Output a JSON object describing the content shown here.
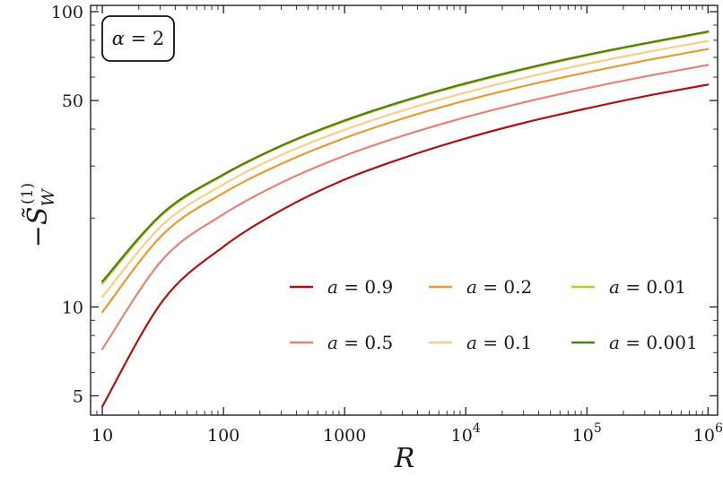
{
  "chart_data": {
    "type": "line",
    "title": "",
    "xlabel": "R",
    "ylabel": "−S̃_W^(1)",
    "ylabel_parts": {
      "sign": "−",
      "symbol": "S̃",
      "subscript": "W",
      "superscript": "(1)"
    },
    "annotation": {
      "variable": "α",
      "text": " = 2"
    },
    "x_scale": "log",
    "y_scale": "log",
    "xlim": [
      8,
      1200000
    ],
    "ylim": [
      4.3,
      105
    ],
    "x_ticks": [
      {
        "value": 10,
        "label": "10"
      },
      {
        "value": 100,
        "label": "100"
      },
      {
        "value": 1000,
        "label": "1000"
      },
      {
        "value": 10000,
        "base": "10",
        "exp": "4"
      },
      {
        "value": 100000,
        "base": "10",
        "exp": "5"
      },
      {
        "value": 1000000,
        "base": "10",
        "exp": "6"
      }
    ],
    "y_ticks": [
      {
        "value": 5,
        "label": "5"
      },
      {
        "value": 10,
        "label": "10"
      },
      {
        "value": 50,
        "label": "50"
      },
      {
        "value": 100,
        "label": "100"
      }
    ],
    "legend_position": "bottom-right",
    "x": [
      10,
      31.6,
      100,
      316,
      1000,
      3162,
      10000,
      31623,
      100000,
      316228,
      1000000
    ],
    "series": [
      {
        "name": "a = 0.9",
        "var": "a",
        "eq": " = 0.9",
        "color": "#b2100e",
        "values": [
          4.6,
          10.5,
          16.0,
          21.5,
          27.0,
          32.1,
          37.2,
          42.2,
          47.0,
          51.9,
          56.6
        ]
      },
      {
        "name": "a = 0.5",
        "var": "a",
        "eq": " = 0.5",
        "color": "#e98275",
        "values": [
          7.2,
          14.5,
          20.6,
          26.6,
          32.5,
          38.2,
          43.9,
          49.5,
          55.0,
          60.5,
          66.0
        ]
      },
      {
        "name": "a = 0.2",
        "var": "a",
        "eq": " = 0.2",
        "color": "#e89b2e",
        "values": [
          9.6,
          17.6,
          24.3,
          30.8,
          37.3,
          43.7,
          50.0,
          56.2,
          62.3,
          68.5,
          74.7
        ]
      },
      {
        "name": "a = 0.1",
        "var": "a",
        "eq": " = 0.1",
        "color": "#f8cf89",
        "values": [
          10.8,
          19.0,
          26.0,
          33.0,
          39.8,
          46.5,
          53.2,
          59.9,
          66.5,
          73.0,
          79.6
        ]
      },
      {
        "name": "a = 0.01",
        "var": "a",
        "eq": " = 0.01",
        "color": "#bccd2a",
        "values": [
          12.0,
          20.6,
          27.9,
          35.3,
          42.5,
          49.7,
          56.8,
          63.9,
          71.0,
          78.0,
          85.1
        ]
      },
      {
        "name": "a = 0.001",
        "var": "a",
        "eq": " = 0.001",
        "color": "#4f7f12",
        "values": [
          12.2,
          20.8,
          28.1,
          35.5,
          42.8,
          50.0,
          57.2,
          64.3,
          71.4,
          78.4,
          85.6
        ]
      }
    ]
  }
}
